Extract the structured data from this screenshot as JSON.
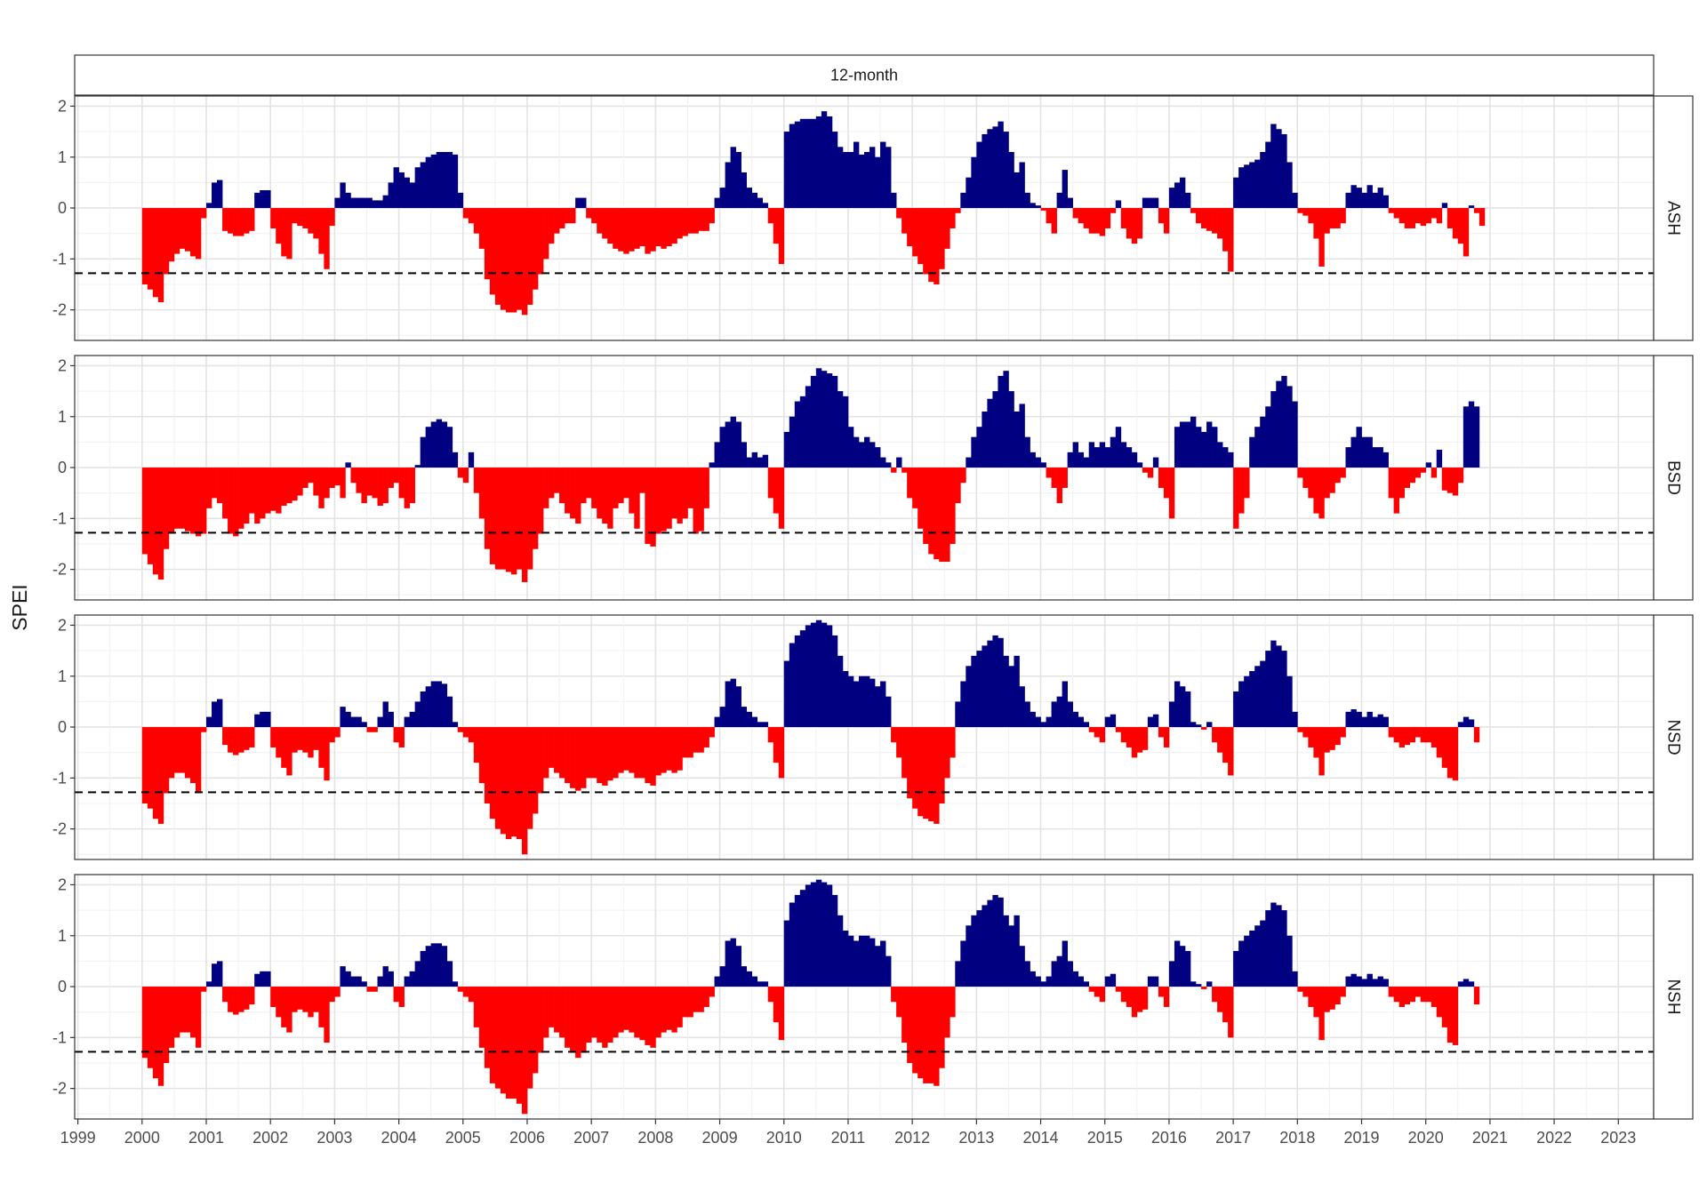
{
  "chart_data": {
    "type": "bar",
    "facet_title": "12-month",
    "ylabel": "SPEI",
    "xlabel": "",
    "ylim": [
      -2.6,
      2.2
    ],
    "xlim": [
      1998.95,
      2023.55
    ],
    "yticks": [
      -2,
      -1,
      0,
      1,
      2
    ],
    "xticks": [
      1999,
      2000,
      2001,
      2002,
      2003,
      2004,
      2005,
      2006,
      2007,
      2008,
      2009,
      2010,
      2011,
      2012,
      2013,
      2014,
      2015,
      2016,
      2017,
      2018,
      2019,
      2020,
      2021,
      2022,
      2023
    ],
    "threshold": -1.28,
    "threshold_style": "dashed",
    "grid": true,
    "colors": {
      "positive": "#000080",
      "negative": "#ff0000",
      "threshold": "#000000"
    },
    "start": "2000-01",
    "frequency": "monthly",
    "panels": [
      {
        "name": "ASH",
        "values": [
          -1.5,
          -1.6,
          -1.75,
          -1.85,
          -1.3,
          -1.05,
          -0.9,
          -0.8,
          -0.85,
          -0.95,
          -1.0,
          -0.2,
          0.1,
          0.5,
          0.55,
          -0.45,
          -0.5,
          -0.55,
          -0.55,
          -0.5,
          -0.45,
          0.3,
          0.35,
          0.35,
          -0.4,
          -0.7,
          -0.95,
          -1.0,
          -0.3,
          -0.35,
          -0.4,
          -0.5,
          -0.6,
          -0.9,
          -1.2,
          -0.35,
          0.2,
          0.5,
          0.3,
          0.2,
          0.2,
          0.2,
          0.2,
          0.15,
          0.15,
          0.25,
          0.5,
          0.8,
          0.7,
          0.6,
          0.5,
          0.8,
          0.9,
          1.0,
          1.05,
          1.1,
          1.1,
          1.1,
          1.05,
          0.3,
          -0.2,
          -0.3,
          -0.5,
          -0.8,
          -1.4,
          -1.7,
          -1.9,
          -2.0,
          -2.05,
          -2.05,
          -2.0,
          -2.1,
          -1.9,
          -1.6,
          -1.3,
          -1.0,
          -0.7,
          -0.5,
          -0.4,
          -0.3,
          -0.3,
          0.2,
          0.2,
          -0.2,
          -0.3,
          -0.5,
          -0.6,
          -0.7,
          -0.8,
          -0.85,
          -0.9,
          -0.85,
          -0.8,
          -0.75,
          -0.9,
          -0.85,
          -0.75,
          -0.8,
          -0.75,
          -0.7,
          -0.6,
          -0.55,
          -0.5,
          -0.5,
          -0.45,
          -0.45,
          -0.3,
          0.2,
          0.4,
          0.9,
          1.2,
          1.1,
          0.7,
          0.4,
          0.3,
          0.2,
          0.1,
          -0.3,
          -0.7,
          -1.1,
          1.5,
          1.65,
          1.7,
          1.75,
          1.75,
          1.75,
          1.8,
          1.9,
          1.8,
          1.5,
          1.2,
          1.1,
          1.1,
          1.3,
          1.05,
          1.1,
          1.2,
          1.0,
          1.3,
          1.2,
          0.3,
          -0.2,
          -0.5,
          -0.75,
          -0.95,
          -1.1,
          -1.3,
          -1.45,
          -1.5,
          -1.2,
          -0.8,
          -0.4,
          -0.1,
          0.3,
          0.6,
          1.0,
          1.3,
          1.45,
          1.55,
          1.6,
          1.7,
          1.5,
          1.1,
          0.7,
          0.9,
          0.3,
          0.1,
          0.05,
          -0.05,
          -0.3,
          -0.5,
          0.3,
          0.75,
          0.2,
          -0.2,
          -0.3,
          -0.4,
          -0.5,
          -0.5,
          -0.55,
          -0.4,
          -0.1,
          0.15,
          -0.4,
          -0.6,
          -0.7,
          -0.6,
          0.2,
          0.2,
          0.2,
          -0.3,
          -0.5,
          0.4,
          0.5,
          0.6,
          0.3,
          -0.1,
          -0.3,
          -0.4,
          -0.45,
          -0.5,
          -0.6,
          -0.85,
          -1.25,
          0.6,
          0.8,
          0.85,
          0.9,
          0.95,
          1.1,
          1.3,
          1.65,
          1.55,
          1.45,
          0.9,
          0.3,
          -0.1,
          -0.15,
          -0.3,
          -0.6,
          -1.15,
          -0.5,
          -0.4,
          -0.4,
          -0.3,
          0.3,
          0.45,
          0.4,
          0.3,
          0.45,
          0.3,
          0.4,
          0.25,
          -0.1,
          -0.2,
          -0.3,
          -0.4,
          -0.4,
          -0.3,
          -0.35,
          -0.3,
          -0.2,
          -0.3,
          0.1,
          -0.4,
          -0.6,
          -0.7,
          -0.95,
          0.05,
          -0.1,
          -0.35
        ]
      },
      {
        "name": "BSD",
        "values": [
          -1.7,
          -1.9,
          -2.1,
          -2.2,
          -1.6,
          -1.3,
          -1.2,
          -1.2,
          -1.25,
          -1.3,
          -1.35,
          -1.3,
          -0.8,
          -0.6,
          -0.7,
          -1.0,
          -1.3,
          -1.35,
          -1.2,
          -1.1,
          -0.9,
          -1.1,
          -1.0,
          -0.9,
          -0.85,
          -0.9,
          -0.75,
          -0.7,
          -0.65,
          -0.55,
          -0.4,
          -0.3,
          -0.55,
          -0.8,
          -0.6,
          -0.4,
          -0.35,
          -0.6,
          0.1,
          -0.3,
          -0.5,
          -0.7,
          -0.55,
          -0.6,
          -0.75,
          -0.7,
          -0.4,
          -0.3,
          -0.6,
          -0.8,
          -0.7,
          0.05,
          0.6,
          0.8,
          0.9,
          0.95,
          0.9,
          0.8,
          0.3,
          -0.2,
          -0.3,
          0.3,
          -0.5,
          -1.0,
          -1.6,
          -1.9,
          -2.0,
          -2.0,
          -2.05,
          -2.1,
          -2.0,
          -2.25,
          -2.0,
          -1.6,
          -1.3,
          -0.8,
          -0.6,
          -0.5,
          -0.7,
          -0.9,
          -1.0,
          -1.1,
          -0.7,
          -0.6,
          -0.8,
          -1.0,
          -1.1,
          -1.2,
          -0.8,
          -0.7,
          -0.6,
          -0.9,
          -1.2,
          -0.5,
          -1.5,
          -1.55,
          -1.3,
          -1.25,
          -1.2,
          -1.0,
          -1.1,
          -1.0,
          -0.8,
          -1.3,
          -1.25,
          -0.8,
          0.1,
          0.5,
          0.8,
          0.9,
          1.0,
          0.9,
          0.5,
          0.2,
          0.3,
          0.2,
          0.25,
          -0.6,
          -0.9,
          -1.2,
          0.7,
          1.0,
          1.3,
          1.4,
          1.6,
          1.8,
          1.95,
          1.9,
          1.85,
          1.8,
          1.5,
          1.4,
          0.8,
          0.6,
          0.5,
          0.6,
          0.5,
          0.4,
          0.2,
          0.1,
          -0.1,
          0.2,
          -0.1,
          -0.6,
          -0.8,
          -1.2,
          -1.5,
          -1.7,
          -1.8,
          -1.85,
          -1.85,
          -1.5,
          -0.7,
          -0.3,
          0.2,
          0.6,
          0.8,
          1.1,
          1.35,
          1.5,
          1.8,
          1.9,
          1.5,
          1.1,
          1.25,
          0.6,
          0.3,
          0.2,
          0.1,
          -0.2,
          -0.4,
          -0.7,
          -0.4,
          0.3,
          0.5,
          0.3,
          0.2,
          0.5,
          0.4,
          0.5,
          0.4,
          0.6,
          0.8,
          0.5,
          0.4,
          0.3,
          0.1,
          -0.1,
          -0.2,
          0.2,
          -0.4,
          -0.6,
          -1.0,
          0.8,
          0.9,
          0.9,
          1.0,
          0.8,
          0.7,
          0.9,
          0.8,
          0.5,
          0.4,
          0.3,
          -1.2,
          -0.9,
          -0.6,
          0.6,
          0.8,
          1.0,
          1.2,
          1.5,
          1.7,
          1.8,
          1.6,
          1.3,
          -0.2,
          -0.4,
          -0.6,
          -0.9,
          -1.0,
          -0.6,
          -0.5,
          -0.3,
          -0.2,
          0.4,
          0.6,
          0.8,
          0.6,
          0.6,
          0.4,
          0.4,
          0.3,
          -0.6,
          -0.9,
          -0.6,
          -0.4,
          -0.3,
          -0.2,
          -0.1,
          0.1,
          -0.2,
          0.35,
          -0.45,
          -0.5,
          -0.55,
          -0.3,
          1.2,
          1.3,
          1.2
        ]
      },
      {
        "name": "NSD",
        "values": [
          -1.5,
          -1.6,
          -1.8,
          -1.9,
          -1.3,
          -1.0,
          -0.9,
          -0.9,
          -1.0,
          -1.1,
          -1.3,
          -0.1,
          0.2,
          0.5,
          0.55,
          -0.35,
          -0.5,
          -0.55,
          -0.5,
          -0.45,
          -0.4,
          0.25,
          0.3,
          0.3,
          -0.4,
          -0.6,
          -0.8,
          -0.95,
          -0.5,
          -0.45,
          -0.5,
          -0.6,
          -0.45,
          -0.8,
          -1.05,
          -0.3,
          -0.2,
          0.4,
          0.3,
          0.2,
          0.2,
          0.1,
          -0.1,
          -0.1,
          0.2,
          0.5,
          0.3,
          -0.3,
          -0.4,
          0.2,
          0.3,
          0.5,
          0.7,
          0.8,
          0.9,
          0.9,
          0.85,
          0.6,
          0.1,
          -0.1,
          -0.2,
          -0.3,
          -0.7,
          -1.1,
          -1.5,
          -1.8,
          -2.0,
          -2.1,
          -2.2,
          -2.15,
          -2.2,
          -2.5,
          -2.0,
          -1.7,
          -1.3,
          -1.0,
          -0.8,
          -0.9,
          -1.0,
          -1.1,
          -1.2,
          -1.25,
          -1.2,
          -1.0,
          -1.0,
          -1.1,
          -1.15,
          -1.05,
          -1.0,
          -0.9,
          -0.85,
          -0.9,
          -1.0,
          -1.0,
          -1.1,
          -1.15,
          -0.95,
          -0.9,
          -0.85,
          -0.9,
          -0.85,
          -0.6,
          -0.6,
          -0.5,
          -0.5,
          -0.4,
          -0.2,
          0.2,
          0.4,
          0.9,
          0.95,
          0.8,
          0.4,
          0.3,
          0.2,
          0.1,
          0.1,
          -0.3,
          -0.7,
          -1.0,
          1.3,
          1.65,
          1.8,
          1.9,
          2.0,
          2.05,
          2.1,
          2.05,
          2.0,
          1.8,
          1.4,
          1.1,
          1.0,
          0.9,
          1.0,
          1.0,
          0.95,
          0.8,
          0.9,
          0.6,
          -0.3,
          -0.6,
          -1.0,
          -1.4,
          -1.6,
          -1.75,
          -1.8,
          -1.85,
          -1.9,
          -1.5,
          -1.0,
          -0.6,
          0.5,
          0.9,
          1.2,
          1.4,
          1.5,
          1.6,
          1.7,
          1.8,
          1.75,
          1.4,
          1.2,
          1.4,
          0.8,
          0.5,
          0.3,
          0.2,
          0.1,
          0.2,
          0.5,
          0.6,
          0.9,
          0.5,
          0.3,
          0.2,
          0.1,
          -0.1,
          -0.2,
          -0.3,
          0.2,
          0.25,
          -0.1,
          -0.3,
          -0.4,
          -0.6,
          -0.5,
          -0.45,
          0.2,
          0.25,
          -0.2,
          -0.4,
          0.5,
          0.9,
          0.8,
          0.7,
          0.1,
          0.05,
          -0.05,
          0.1,
          -0.3,
          -0.5,
          -0.7,
          -0.95,
          0.7,
          0.9,
          1.0,
          1.1,
          1.2,
          1.3,
          1.5,
          1.7,
          1.6,
          1.5,
          1.0,
          0.3,
          -0.1,
          -0.2,
          -0.4,
          -0.6,
          -0.95,
          -0.5,
          -0.45,
          -0.35,
          -0.2,
          0.3,
          0.35,
          0.3,
          0.2,
          0.3,
          0.2,
          0.25,
          0.2,
          -0.2,
          -0.3,
          -0.4,
          -0.35,
          -0.3,
          -0.2,
          -0.3,
          -0.3,
          -0.4,
          -0.6,
          -0.8,
          -1.0,
          -1.05,
          0.1,
          0.2,
          0.15,
          -0.3
        ]
      },
      {
        "name": "NSH",
        "values": [
          -1.4,
          -1.6,
          -1.8,
          -1.95,
          -1.5,
          -1.2,
          -1.0,
          -0.9,
          -0.9,
          -1.0,
          -1.2,
          -0.1,
          0.1,
          0.45,
          0.5,
          -0.3,
          -0.5,
          -0.55,
          -0.5,
          -0.45,
          -0.35,
          0.25,
          0.3,
          0.3,
          -0.4,
          -0.6,
          -0.8,
          -0.9,
          -0.5,
          -0.45,
          -0.5,
          -0.6,
          -0.5,
          -0.8,
          -1.1,
          -0.3,
          -0.2,
          0.4,
          0.3,
          0.2,
          0.2,
          0.1,
          -0.1,
          -0.1,
          0.2,
          0.4,
          0.3,
          -0.3,
          -0.4,
          0.2,
          0.3,
          0.5,
          0.7,
          0.8,
          0.85,
          0.85,
          0.8,
          0.5,
          0.1,
          -0.1,
          -0.2,
          -0.3,
          -0.8,
          -1.2,
          -1.6,
          -1.9,
          -2.0,
          -2.1,
          -2.2,
          -2.2,
          -2.3,
          -2.5,
          -2.0,
          -1.7,
          -1.3,
          -1.0,
          -0.8,
          -0.9,
          -1.0,
          -1.2,
          -1.3,
          -1.4,
          -1.3,
          -1.1,
          -1.0,
          -1.1,
          -1.2,
          -1.1,
          -1.0,
          -0.9,
          -0.85,
          -0.9,
          -1.0,
          -1.05,
          -1.15,
          -1.2,
          -1.0,
          -0.9,
          -0.85,
          -0.9,
          -0.8,
          -0.6,
          -0.6,
          -0.5,
          -0.5,
          -0.4,
          -0.2,
          0.2,
          0.4,
          0.9,
          0.95,
          0.8,
          0.4,
          0.3,
          0.2,
          0.1,
          0.1,
          -0.3,
          -0.7,
          -1.05,
          1.3,
          1.65,
          1.8,
          1.9,
          2.0,
          2.05,
          2.1,
          2.05,
          2.0,
          1.8,
          1.4,
          1.1,
          1.0,
          0.9,
          1.0,
          1.0,
          0.95,
          0.8,
          0.9,
          0.6,
          -0.3,
          -0.6,
          -1.1,
          -1.5,
          -1.7,
          -1.8,
          -1.9,
          -1.9,
          -1.95,
          -1.6,
          -1.0,
          -0.6,
          0.5,
          0.9,
          1.2,
          1.4,
          1.5,
          1.6,
          1.7,
          1.8,
          1.75,
          1.4,
          1.2,
          1.4,
          0.8,
          0.5,
          0.3,
          0.2,
          0.1,
          0.2,
          0.5,
          0.6,
          0.9,
          0.5,
          0.3,
          0.2,
          0.1,
          -0.1,
          -0.2,
          -0.3,
          0.2,
          0.25,
          -0.1,
          -0.3,
          -0.4,
          -0.6,
          -0.5,
          -0.45,
          0.2,
          0.2,
          -0.2,
          -0.4,
          0.5,
          0.9,
          0.8,
          0.7,
          0.1,
          0.05,
          -0.05,
          0.1,
          -0.3,
          -0.5,
          -0.7,
          -1.0,
          0.7,
          0.9,
          1.0,
          1.1,
          1.2,
          1.3,
          1.5,
          1.65,
          1.6,
          1.5,
          1.0,
          0.3,
          -0.1,
          -0.2,
          -0.4,
          -0.6,
          -1.05,
          -0.5,
          -0.45,
          -0.35,
          -0.2,
          0.2,
          0.25,
          0.2,
          0.15,
          0.25,
          0.15,
          0.2,
          0.15,
          -0.2,
          -0.3,
          -0.4,
          -0.35,
          -0.3,
          -0.2,
          -0.3,
          -0.3,
          -0.4,
          -0.6,
          -0.8,
          -1.1,
          -1.15,
          0.1,
          0.15,
          0.1,
          -0.35
        ]
      }
    ]
  }
}
